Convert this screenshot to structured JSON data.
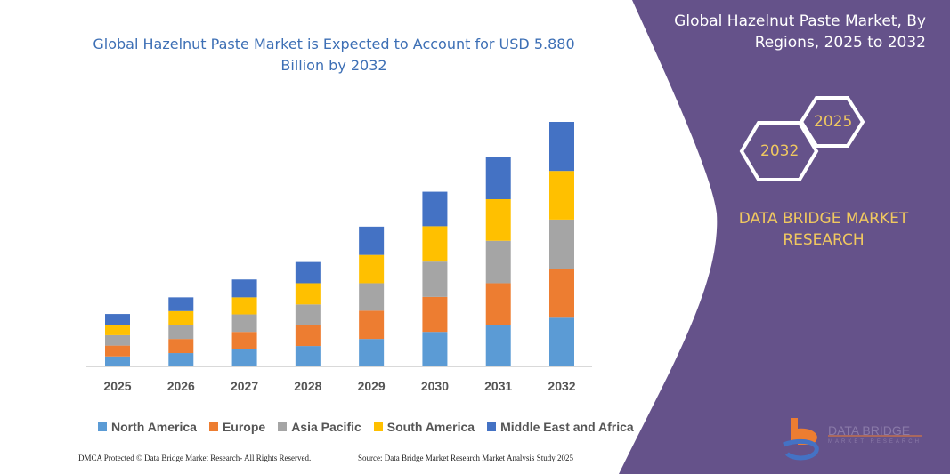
{
  "colors": {
    "panel": "#65528a",
    "North America": "#5b9bd5",
    "Europe": "#ed7d31",
    "Asia Pacific": "#a5a5a5",
    "South America": "#ffc000",
    "Middle East and Africa": "#4472c4",
    "accent_text": "#f0c860"
  },
  "side": {
    "title": "Global Hazelnut Paste Market, By Regions, 2025 to 2032",
    "hex_back": "2025",
    "hex_front": "2032",
    "brand": "DATA BRIDGE MARKET RESEARCH",
    "logo_text": "DATA BRIDGE",
    "logo_sub": "MARKET RESEARCH"
  },
  "footer": {
    "left": "DMCA Protected © Data Bridge Market Research- All Rights Reserved.",
    "right": "Source: Data Bridge Market Research Market Analysis Study 2025"
  },
  "chart_data": {
    "type": "bar",
    "stacked": true,
    "title": "Global Hazelnut Paste Market is Expected to Account for USD 5.880 Billion by 2032",
    "categories": [
      "2025",
      "2026",
      "2027",
      "2028",
      "2029",
      "2030",
      "2031",
      "2032"
    ],
    "series": [
      {
        "name": "North America",
        "values": [
          0.24,
          0.32,
          0.41,
          0.49,
          0.66,
          0.83,
          0.99,
          1.17
        ]
      },
      {
        "name": "Europe",
        "values": [
          0.26,
          0.34,
          0.42,
          0.51,
          0.68,
          0.84,
          1.01,
          1.17
        ]
      },
      {
        "name": "Asia Pacific",
        "values": [
          0.25,
          0.33,
          0.42,
          0.49,
          0.66,
          0.85,
          1.02,
          1.19
        ]
      },
      {
        "name": "South America",
        "values": [
          0.25,
          0.34,
          0.41,
          0.51,
          0.68,
          0.85,
          1.0,
          1.17
        ]
      },
      {
        "name": "Middle East and Africa",
        "values": [
          0.26,
          0.33,
          0.43,
          0.51,
          0.68,
          0.83,
          1.02,
          1.18
        ]
      }
    ],
    "ylim": [
      0,
      5.88
    ],
    "grid": false,
    "y_axis_shown": false,
    "legend_position": "bottom"
  }
}
